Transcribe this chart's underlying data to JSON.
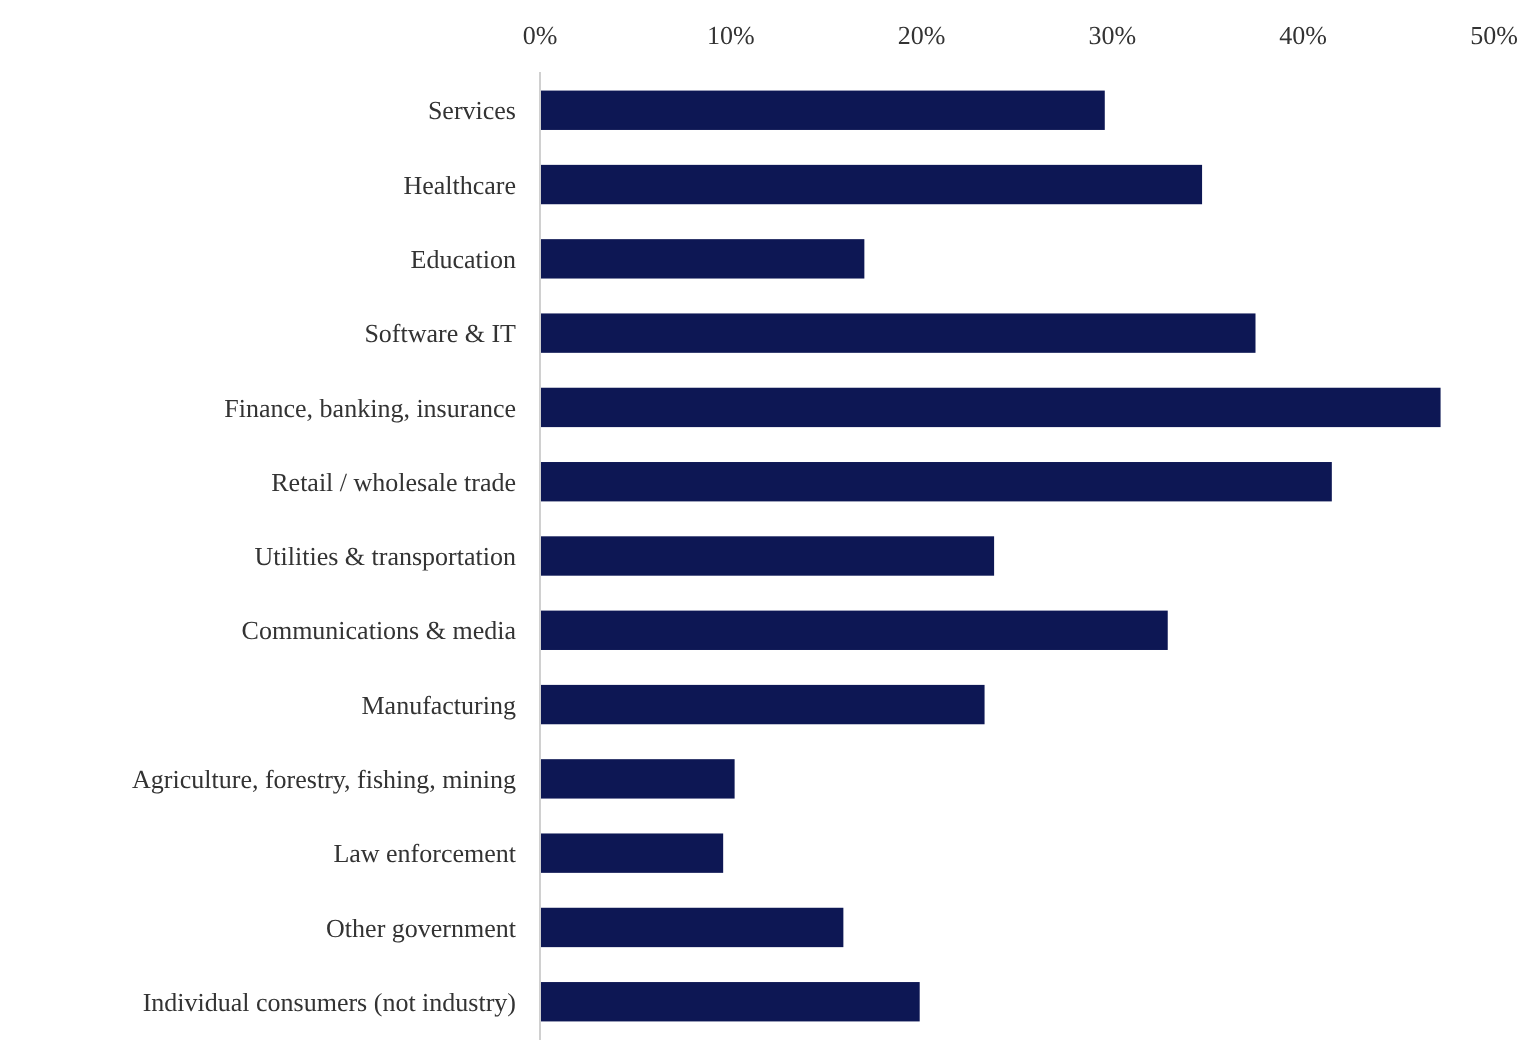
{
  "chart_data": {
    "type": "bar",
    "orientation": "horizontal",
    "categories": [
      "Services",
      "Healthcare",
      "Education",
      "Software & IT",
      "Finance, banking, insurance",
      "Retail / wholesale trade",
      "Utilities & transportation",
      "Communications & media",
      "Manufacturing",
      "Agriculture, forestry, fishing, mining",
      "Law enforcement",
      "Other government",
      "Individual consumers (not industry)"
    ],
    "values": [
      29.6,
      34.7,
      17.0,
      37.5,
      47.2,
      41.5,
      23.8,
      32.9,
      23.3,
      10.2,
      9.6,
      15.9,
      19.9
    ],
    "color": "#0d1754",
    "xlim": [
      0,
      50
    ],
    "xticks": [
      {
        "value": 0,
        "label": "0%"
      },
      {
        "value": 10,
        "label": "10%"
      },
      {
        "value": 20,
        "label": "20%"
      },
      {
        "value": 30,
        "label": "30%"
      },
      {
        "value": 40,
        "label": "40%"
      },
      {
        "value": 50,
        "label": "50%"
      }
    ],
    "grid": false
  }
}
